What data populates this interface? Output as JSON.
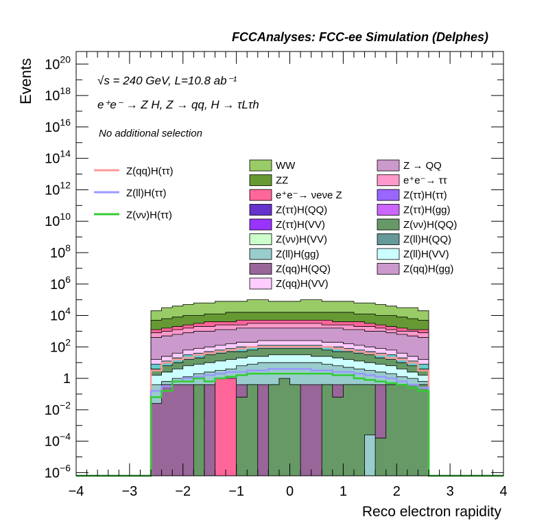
{
  "chart_data": {
    "type": "area",
    "title": "FCCAnalyses: FCC-ee Simulation (Delphes)",
    "xlabel": "Reco electron rapidity",
    "ylabel": "Events",
    "xlim": [
      -4,
      4
    ],
    "ylim_log10": [
      -6.2,
      20.8
    ],
    "log_y": true,
    "grid": false,
    "x_ticks": [
      "−4",
      "−3",
      "−2",
      "−1",
      "0",
      "1",
      "2",
      "3",
      "4"
    ],
    "y_ticks": [
      {
        "mantissa": "10",
        "exp": "−6",
        "log": -6
      },
      {
        "mantissa": "10",
        "exp": "−4",
        "log": -4
      },
      {
        "mantissa": "10",
        "exp": "−2",
        "log": -2
      },
      {
        "mantissa": "1",
        "exp": "",
        "log": 0
      },
      {
        "mantissa": "10",
        "exp": "2",
        "log": 2
      },
      {
        "mantissa": "10",
        "exp": "4",
        "log": 4
      },
      {
        "mantissa": "10",
        "exp": "6",
        "log": 6
      },
      {
        "mantissa": "10",
        "exp": "8",
        "log": 8
      },
      {
        "mantissa": "10",
        "exp": "10",
        "log": 10
      },
      {
        "mantissa": "10",
        "exp": "12",
        "log": 12
      },
      {
        "mantissa": "10",
        "exp": "14",
        "log": 14
      },
      {
        "mantissa": "10",
        "exp": "16",
        "log": 16
      },
      {
        "mantissa": "10",
        "exp": "18",
        "log": 18
      },
      {
        "mantissa": "10",
        "exp": "20",
        "log": 20
      }
    ],
    "annotations": {
      "energy": "√s = 240 GeV, L=10.8 ab⁻¹",
      "process": "e⁺e⁻ → Z H, Z → qq, H → τLτh",
      "selection": "No additional selection"
    },
    "bin_edges": [
      -2.6,
      -2.4,
      -2.2,
      -2.0,
      -1.8,
      -1.6,
      -1.4,
      -1.2,
      -1.0,
      -0.8,
      -0.6,
      -0.4,
      -0.2,
      0.0,
      0.2,
      0.4,
      0.6,
      0.8,
      1.0,
      1.2,
      1.4,
      1.6,
      1.8,
      2.0,
      2.2,
      2.4,
      2.6
    ],
    "stack_log10": [
      {
        "name": "Z(qq)H(VV)",
        "color": "#ffccff",
        "values": [
          -1.6,
          -1.6,
          -1.6,
          -1.6,
          -1.6,
          -1.6,
          -1.6,
          -1.6,
          -1.6,
          -1.6,
          -1.6,
          -1.6,
          -1.6,
          -1.6,
          -1.6,
          -1.6,
          -1.6,
          -1.6,
          -1.6,
          -1.6,
          -1.6,
          -1.6,
          -1.6,
          -1.6,
          -1.6,
          -1.6
        ]
      },
      {
        "name": "Z(qq)H(QQ)",
        "color": "#996699",
        "values": [
          -1.6,
          -0.4,
          -0.4,
          -0.4,
          -0.4,
          -0.4,
          -0.4,
          -0.4,
          -0.4,
          -0.4,
          -0.4,
          -0.4,
          -0.4,
          -0.4,
          -0.4,
          -0.4,
          -0.4,
          -0.4,
          -0.4,
          -0.4,
          -0.4,
          -0.4,
          -0.4,
          -0.4,
          -0.4,
          -0.4
        ]
      },
      {
        "name": "Z(ll)H(gg)",
        "color": "#99cccc",
        "values": [
          -1.6,
          -0.4,
          -0.4,
          -0.4,
          -0.4,
          -0.4,
          -0.4,
          -0.4,
          -0.4,
          -0.4,
          -0.4,
          -0.4,
          -0.4,
          -0.4,
          -0.4,
          -0.4,
          -0.4,
          -0.4,
          -0.4,
          -0.4,
          -0.4,
          -0.4,
          -0.4,
          -0.4,
          -0.4,
          -0.4
        ]
      },
      {
        "name": "Z(νν)H(VV)",
        "color": "#ccffcc",
        "values": [
          -1.6,
          -0.4,
          -0.4,
          -0.4,
          -0.4,
          -0.4,
          -0.4,
          -0.4,
          -0.4,
          -0.4,
          -0.4,
          -0.4,
          -0.4,
          -0.4,
          -0.4,
          -0.4,
          -0.4,
          -0.4,
          -0.4,
          -0.4,
          -0.4,
          -0.4,
          -0.4,
          -0.4,
          -0.4,
          -0.4
        ]
      },
      {
        "name": "Z(ττ)H(VV)",
        "color": "#9933ff",
        "values": [
          -1.6,
          -0.4,
          -0.4,
          -0.4,
          -0.4,
          -0.4,
          -0.4,
          -0.4,
          -0.4,
          -0.4,
          -0.4,
          -0.4,
          -0.4,
          -0.4,
          -0.4,
          -0.4,
          -0.4,
          -0.4,
          -0.4,
          -0.4,
          -0.4,
          -0.4,
          -0.4,
          -0.4,
          -0.4,
          -0.4
        ]
      },
      {
        "name": "Z(ττ)H(QQ)",
        "color": "#6633cc",
        "values": [
          -1.6,
          -0.4,
          -0.4,
          -0.4,
          -0.4,
          -0.4,
          -0.4,
          -0.4,
          -0.4,
          -0.4,
          -0.4,
          -0.4,
          -0.4,
          -0.4,
          -0.4,
          -0.4,
          -0.4,
          -0.4,
          -0.4,
          -0.4,
          -0.4,
          -0.4,
          -0.4,
          -0.4,
          -0.4,
          -0.4
        ]
      },
      {
        "name": "e⁺e⁻→ νeνe Z",
        "color": "#ff6699",
        "values": [
          -1.6,
          -0.4,
          -0.4,
          -0.4,
          -0.4,
          -0.4,
          -0.4,
          -0.4,
          -0.4,
          -0.4,
          -0.4,
          -0.4,
          -0.4,
          -0.4,
          -0.4,
          -0.4,
          -0.4,
          -0.4,
          -0.4,
          -0.4,
          -0.4,
          -0.4,
          -0.4,
          -0.4,
          -0.4,
          -0.4
        ]
      },
      {
        "name": "ZZ",
        "color": "#669933",
        "values": [
          -1.6,
          -0.4,
          -0.4,
          -0.4,
          -0.4,
          -0.4,
          -0.4,
          -0.4,
          -0.4,
          -0.4,
          -0.4,
          -0.4,
          -0.4,
          -0.4,
          -0.4,
          -0.4,
          -0.4,
          -0.4,
          -0.4,
          -0.4,
          -0.4,
          -0.4,
          -0.4,
          -0.4,
          -0.4,
          -0.4
        ]
      },
      {
        "name": "WW",
        "color": "#99cc66",
        "values": [
          -1.6,
          -0.4,
          -0.4,
          -0.4,
          -0.4,
          -0.4,
          -0.4,
          -0.4,
          -0.4,
          -0.4,
          -0.4,
          -0.4,
          -0.4,
          -0.4,
          -0.4,
          -0.4,
          -0.4,
          -0.4,
          -0.4,
          -0.4,
          -0.4,
          -0.4,
          -0.4,
          -0.4,
          -0.4,
          -0.4
        ]
      }
    ],
    "stack_layers_log10": [
      {
        "name": "Z(qq)H(QQ)",
        "color": "#996699",
        "values": [
          -1.6,
          -0.4,
          -0.4,
          -0.4,
          -2.6,
          -0.4,
          -0.4,
          -0.4,
          -0.4,
          -0.4,
          -0.4,
          -0.4,
          -0.4,
          -0.4,
          -0.4,
          -0.4,
          -0.4,
          -0.4,
          -0.4,
          -0.4,
          -0.4,
          -0.4,
          -0.4,
          -0.4,
          -0.4,
          -0.4
        ]
      },
      {
        "name": "Z(νν)H(QQ)",
        "color": "#669966",
        "values": [
          -6.2,
          -6.2,
          -6.2,
          -6.2,
          -0.4,
          -6.2,
          -6.2,
          -6.2,
          -1.2,
          -0.4,
          -6.2,
          -0.4,
          0.0,
          -0.4,
          -6.2,
          -6.2,
          -0.4,
          -1.2,
          -0.4,
          -0.4,
          -0.4,
          -3.8,
          -0.4,
          -0.4,
          -0.4,
          -0.4
        ]
      },
      {
        "name": "Z(ll)H(gg)",
        "color": "#99cccc",
        "values": [
          -6.2,
          -6.2,
          -6.2,
          -6.2,
          -6.2,
          -6.2,
          -6.2,
          -6.2,
          -6.2,
          -6.2,
          -6.2,
          -6.2,
          -6.2,
          -6.2,
          -6.2,
          -6.2,
          -6.2,
          -6.2,
          -6.2,
          -6.2,
          -3.6,
          -6.2,
          -6.2,
          -6.2,
          -6.2,
          -6.2
        ]
      },
      {
        "name": "e⁺e⁻→ νeνe Z",
        "color": "#ff6699",
        "values": [
          -6.2,
          -6.2,
          -6.2,
          -6.2,
          -6.2,
          -6.2,
          0.0,
          0.0,
          -6.2,
          -6.2,
          -6.2,
          -6.2,
          -6.2,
          -6.2,
          -6.2,
          -6.2,
          -6.2,
          -6.2,
          -6.2,
          -6.2,
          -6.2,
          -6.2,
          -6.2,
          -6.2,
          -6.2,
          -6.2
        ]
      }
    ],
    "stack_totals_log10": {
      "Z(qq)H(VV)": [
        -1.6,
        -1.6,
        -1.6,
        -1.6,
        -1.6,
        -1.6,
        -1.6,
        -1.6,
        -1.6,
        -1.6,
        -1.6,
        -1.6,
        -1.6,
        -1.6,
        -1.6,
        -1.6,
        -1.6,
        -1.6,
        -1.6,
        -1.6,
        -1.6,
        -1.6,
        -1.6,
        -1.6,
        -1.6,
        -1.6
      ],
      "Z(qq)H(QQ)": [
        -1.6,
        -0.4,
        -0.4,
        -0.4,
        -0.4,
        -0.4,
        -0.4,
        -0.4,
        -0.4,
        -0.4,
        -0.4,
        -0.4,
        -0.4,
        -0.4,
        -0.4,
        -0.4,
        -0.4,
        -0.4,
        -0.4,
        -0.4,
        -0.4,
        -0.4,
        -0.4,
        -0.4,
        -0.4,
        -0.4
      ],
      "Z(ll)H(gg)": [
        -0.4,
        -0.2,
        0.0,
        0.1,
        0.3,
        0.4,
        0.5,
        0.6,
        0.8,
        0.9,
        1.0,
        1.0,
        1.0,
        1.0,
        1.0,
        1.0,
        0.9,
        0.8,
        0.7,
        0.6,
        0.5,
        0.4,
        0.3,
        0.1,
        0.0,
        -0.2
      ],
      "Z(νν)H(VV)": [
        0.2,
        0.4,
        0.6,
        0.8,
        0.9,
        1.0,
        1.1,
        1.2,
        1.3,
        1.4,
        1.4,
        1.5,
        1.5,
        1.5,
        1.5,
        1.4,
        1.4,
        1.3,
        1.2,
        1.1,
        1.0,
        0.9,
        0.8,
        0.6,
        0.4,
        0.2
      ],
      "Z(ττ)H(VV)": [
        0.6,
        0.8,
        1.0,
        1.2,
        1.3,
        1.5,
        1.6,
        1.7,
        1.7,
        1.8,
        1.9,
        1.9,
        1.9,
        1.9,
        1.9,
        1.9,
        1.8,
        1.7,
        1.7,
        1.6,
        1.5,
        1.3,
        1.2,
        1.0,
        0.8,
        0.6
      ],
      "Z(ττ)H(QQ)": [
        0.9,
        1.1,
        1.3,
        1.5,
        1.6,
        1.7,
        1.8,
        1.9,
        2.0,
        2.0,
        2.1,
        2.1,
        2.1,
        2.1,
        2.1,
        2.1,
        2.0,
        2.0,
        1.9,
        1.8,
        1.7,
        1.6,
        1.5,
        1.3,
        1.1,
        0.9
      ],
      "Z(qq)H(ττ) region": [
        1.2,
        1.4,
        1.6,
        1.8,
        1.9,
        2.0,
        2.1,
        2.2,
        2.3,
        2.3,
        2.4,
        2.4,
        2.4,
        2.4,
        2.4,
        2.4,
        2.3,
        2.3,
        2.2,
        2.1,
        2.0,
        1.9,
        1.8,
        1.6,
        1.4,
        1.2
      ],
      "Z → QQ": [
        2.6,
        2.7,
        2.8,
        2.9,
        3.0,
        3.0,
        3.1,
        3.1,
        3.2,
        3.2,
        3.2,
        3.2,
        3.2,
        3.2,
        3.2,
        3.2,
        3.2,
        3.2,
        3.1,
        3.1,
        3.0,
        3.0,
        2.9,
        2.8,
        2.7,
        2.6
      ],
      "e⁺e⁻→ ττ": [
        2.9,
        3.0,
        3.1,
        3.2,
        3.3,
        3.3,
        3.4,
        3.4,
        3.4,
        3.5,
        3.5,
        3.5,
        3.5,
        3.5,
        3.5,
        3.5,
        3.4,
        3.4,
        3.4,
        3.3,
        3.3,
        3.2,
        3.1,
        3.0,
        3.0,
        2.9
      ],
      "e⁺e⁻→ νeνe Z": [
        3.1,
        3.2,
        3.3,
        3.4,
        3.5,
        3.6,
        3.6,
        3.6,
        3.7,
        3.7,
        3.7,
        3.7,
        3.7,
        3.7,
        3.7,
        3.7,
        3.7,
        3.6,
        3.6,
        3.6,
        3.5,
        3.4,
        3.3,
        3.2,
        3.1,
        3.1
      ],
      "ZZ": [
        3.7,
        3.8,
        3.9,
        4.0,
        4.0,
        4.1,
        4.1,
        4.2,
        4.2,
        4.2,
        4.2,
        4.2,
        4.2,
        4.2,
        4.2,
        4.2,
        4.2,
        4.2,
        4.2,
        4.1,
        4.1,
        4.0,
        4.0,
        3.9,
        3.8,
        3.7
      ],
      "WW": [
        4.3,
        4.5,
        4.6,
        4.7,
        4.8,
        4.8,
        4.9,
        4.9,
        4.9,
        5.0,
        5.0,
        4.9,
        4.9,
        4.9,
        5.0,
        5.0,
        4.9,
        4.9,
        4.9,
        4.8,
        4.8,
        4.7,
        4.6,
        4.5,
        4.5,
        4.3
      ]
    },
    "lines_log10": [
      {
        "name": "Z(qq)H(ττ)",
        "color": "#ff9999",
        "values": [
          0.5,
          1.0,
          1.2,
          1.3,
          1.5,
          1.6,
          1.7,
          1.8,
          1.9,
          2.0,
          2.0,
          2.0,
          2.0,
          2.0,
          2.0,
          2.0,
          2.0,
          1.9,
          1.8,
          1.7,
          1.6,
          1.5,
          1.3,
          1.2,
          1.0,
          0.5
        ]
      },
      {
        "name": "Z(ll)H(ττ)",
        "color": "#9999ff",
        "values": [
          -0.8,
          -0.5,
          -0.2,
          0.0,
          0.1,
          0.2,
          0.3,
          0.4,
          0.4,
          0.5,
          0.5,
          0.6,
          0.6,
          0.6,
          0.6,
          0.5,
          0.5,
          0.4,
          0.4,
          0.3,
          0.2,
          0.1,
          0.0,
          -0.2,
          -0.4,
          -0.6
        ]
      },
      {
        "name": "Z(νν)H(ττ)",
        "color": "#33cc33",
        "values": [
          -1.2,
          -0.8,
          -0.2,
          -0.2,
          0.0,
          -0.2,
          0.0,
          0.1,
          0.2,
          0.3,
          0.3,
          0.3,
          0.3,
          0.3,
          0.3,
          0.3,
          0.3,
          0.2,
          0.2,
          0.0,
          -0.1,
          -0.2,
          -0.3,
          -0.4,
          -0.6,
          -0.8
        ]
      }
    ],
    "legend_left": [
      {
        "label": "Z(qq)H(ττ)",
        "color": "#ff9999"
      },
      {
        "label": "Z(ll)H(ττ)",
        "color": "#9999ff"
      },
      {
        "label": "Z(νν)H(ττ)",
        "color": "#33cc33"
      }
    ],
    "legend_mid": [
      {
        "label": "WW",
        "color": "#99cc66"
      },
      {
        "label": "ZZ",
        "color": "#669933"
      },
      {
        "label": "e⁺e⁻→ νeνe Z",
        "color": "#ff6699"
      },
      {
        "label": "Z(ττ)H(QQ)",
        "color": "#6633cc"
      },
      {
        "label": "Z(ττ)H(VV)",
        "color": "#9933ff"
      },
      {
        "label": "Z(νν)H(VV)",
        "color": "#ccffcc"
      },
      {
        "label": "Z(ll)H(gg)",
        "color": "#99cccc"
      },
      {
        "label": "Z(qq)H(QQ)",
        "color": "#996699"
      },
      {
        "label": "Z(qq)H(VV)",
        "color": "#ffccff"
      }
    ],
    "legend_right": [
      {
        "label": "Z → QQ",
        "color": "#cc99cc"
      },
      {
        "label": "e⁺e⁻→ ττ",
        "color": "#ff99cc"
      },
      {
        "label": "Z(ττ)H(ττ)",
        "color": "#9966ff"
      },
      {
        "label": "Z(ττ)H(gg)",
        "color": "#cc66ff"
      },
      {
        "label": "Z(νν)H(QQ)",
        "color": "#669966"
      },
      {
        "label": "Z(ll)H(QQ)",
        "color": "#669999"
      },
      {
        "label": "Z(ll)H(VV)",
        "color": "#ccffff"
      },
      {
        "label": "Z(qq)H(gg)",
        "color": "#cc99cc"
      }
    ]
  }
}
